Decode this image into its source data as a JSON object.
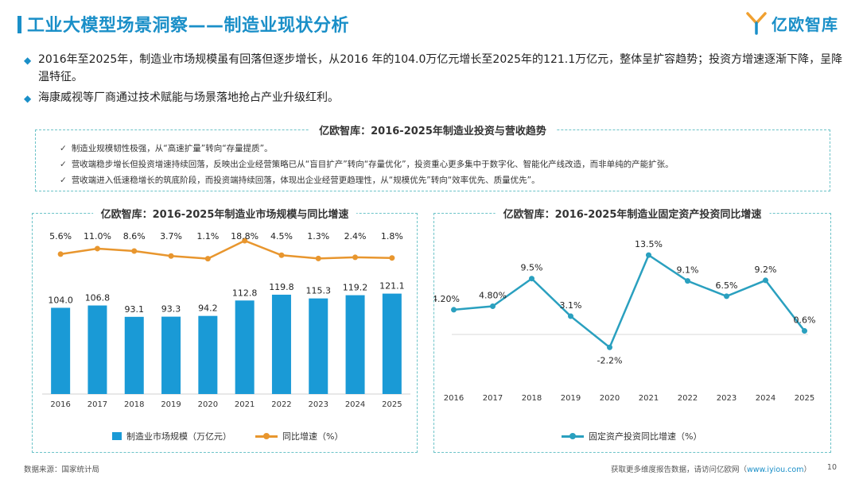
{
  "header": {
    "title": "工业大模型场景洞察——制造业现状分析",
    "logo_text": "亿欧智库"
  },
  "bullets": [
    "2016年至2025年，制造业市场规模虽有回落但逐步增长，从2016 年的104.0万亿元增长至2025年的121.1万亿元，整体呈扩容趋势；投资方增速逐渐下降，呈降温特征。",
    "海康威视等厂商通过技术赋能与场景落地抢占产业升级红利。"
  ],
  "insight": {
    "title": "亿欧智库：2016-2025年制造业投资与营收趋势",
    "items": [
      "制造业规模韧性极强，从“高速扩量”转向“存量提质”。",
      "营收端稳步增长但投资增速持续回落，反映出企业经营策略已从“盲目扩产”转向“存量优化”，投资重心更多集中于数字化、智能化产线改造，而非单纯的产能扩张。",
      "营收端进入低速稳增长的筑底阶段，而投资端持续回落，体现出企业经营更趋理性，从“规模优先”转向“效率优先、质量优先”。"
    ]
  },
  "chart_data": [
    {
      "type": "bar",
      "title": "亿欧智库：2016-2025年制造业市场规模与同比增速",
      "categories": [
        "2016",
        "2017",
        "2018",
        "2019",
        "2020",
        "2021",
        "2022",
        "2023",
        "2024",
        "2025"
      ],
      "series": [
        {
          "name": "制造业市场规模（万亿元）",
          "type": "bar",
          "values": [
            104.0,
            106.8,
            93.1,
            93.3,
            94.2,
            112.8,
            119.8,
            115.3,
            119.2,
            121.1
          ],
          "labels": [
            "104.0",
            "106.8",
            "93.1",
            "93.3",
            "94.2",
            "112.8",
            "119.8",
            "115.3",
            "119.2",
            "121.1"
          ],
          "color": "#1a9ad6"
        },
        {
          "name": "同比增速（%）",
          "type": "line",
          "values": [
            5.6,
            11.0,
            8.6,
            3.7,
            1.1,
            18.8,
            4.5,
            1.3,
            2.4,
            1.8
          ],
          "labels": [
            "5.6%",
            "11.0%",
            "8.6%",
            "3.7%",
            "1.1%",
            "18.8%",
            "4.5%",
            "1.3%",
            "2.4%",
            "1.8%"
          ],
          "color": "#e8962e"
        }
      ],
      "legend": "bottom"
    },
    {
      "type": "line",
      "title": "亿欧智库：2016-2025年制造业固定资产投资同比增速",
      "categories": [
        "2016",
        "2017",
        "2018",
        "2019",
        "2020",
        "2021",
        "2022",
        "2023",
        "2024",
        "2025"
      ],
      "series": [
        {
          "name": "固定资产投资同比增速（%）",
          "values": [
            4.2,
            4.8,
            9.5,
            3.1,
            -2.2,
            13.5,
            9.1,
            6.5,
            9.2,
            0.6
          ],
          "labels": [
            "4.20%",
            "4.80%",
            "9.5%",
            "3.1%",
            "-2.2%",
            "13.5%",
            "9.1%",
            "6.5%",
            "9.2%",
            "0.6%"
          ],
          "color": "#2aa0bf"
        }
      ],
      "legend": "bottom"
    }
  ],
  "source_label": "数据来源：国家统计局",
  "footer": {
    "text": "获取更多维度报告数据，请访问亿欧网（",
    "link": "www.iyiou.com",
    "suffix": "）"
  },
  "page_number": "10"
}
